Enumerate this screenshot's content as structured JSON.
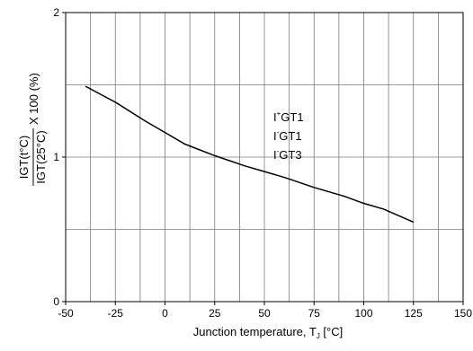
{
  "chart_data": {
    "type": "line",
    "title": "",
    "xlabel": "Junction temperature, T",
    "xlabel_sub": "J",
    "xlabel_unit": " [°C]",
    "ylabel_numerator": "IGT(t°C)",
    "ylabel_denominator": "IGT(25°C)",
    "ylabel_suffix": "X 100 (%)",
    "xlim": [
      -50,
      150
    ],
    "ylim": [
      0,
      2
    ],
    "x_ticks": [
      "-50",
      "-25",
      "0",
      "25",
      "50",
      "75",
      "100",
      "125",
      "150"
    ],
    "y_ticks": [
      "0",
      "1",
      "2"
    ],
    "grid": true,
    "legend": [
      {
        "base": "I",
        "sup": "+",
        "sub": "",
        "rest": "GT1"
      },
      {
        "base": "I",
        "sup": "-",
        "sub": "",
        "rest": "GT1"
      },
      {
        "base": "I",
        "sup": "-",
        "sub": "",
        "rest": "GT3"
      }
    ],
    "series": [
      {
        "x": [
          -40,
          -25,
          -10,
          0,
          10,
          25,
          40,
          50,
          60,
          75,
          90,
          100,
          110,
          125
        ],
        "y": [
          1.49,
          1.38,
          1.25,
          1.17,
          1.09,
          1.01,
          0.94,
          0.9,
          0.86,
          0.79,
          0.73,
          0.68,
          0.64,
          0.55
        ]
      }
    ]
  }
}
